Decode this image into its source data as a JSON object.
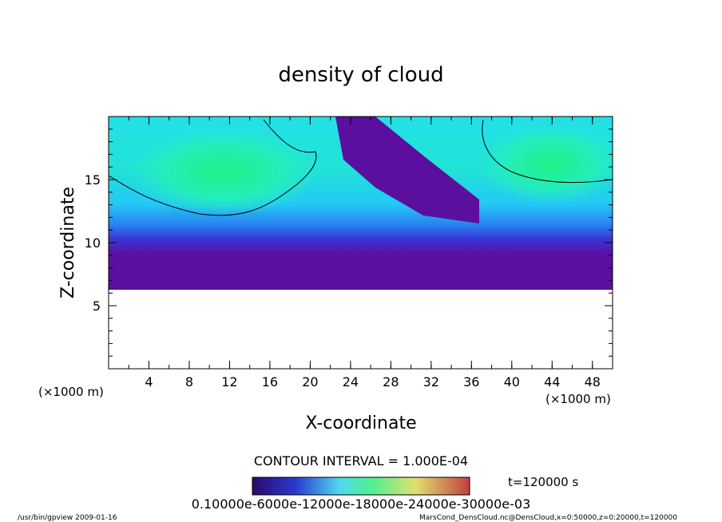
{
  "chart_data": {
    "type": "heatmap",
    "title": "density of cloud",
    "xlabel": "X-coordinate",
    "ylabel": "Z-coordinate",
    "x_unit_left": "(×1000 m)",
    "x_unit_right": "(×1000 m)",
    "xlim": [
      0,
      50
    ],
    "ylim": [
      0,
      20
    ],
    "x_ticks": [
      4,
      8,
      12,
      16,
      20,
      24,
      28,
      32,
      36,
      40,
      44,
      48
    ],
    "x_tick_labels": [
      "4",
      "8",
      "12",
      "16",
      "20",
      "24",
      "28",
      "32",
      "36",
      "40",
      "44",
      "48"
    ],
    "y_ticks": [
      5,
      10,
      15
    ],
    "y_tick_labels": [
      "5",
      "10",
      "15"
    ],
    "contour_interval_label": "CONTOUR INTERVAL = 1.000E-04",
    "time_label": "t=120000 s",
    "colorbar_labels": "0.10000e-6000e-12000e-18000e-24000e-30000e-03",
    "colorbar_colors": [
      "#2a0a6a",
      "#3a1aa0",
      "#2a3ad0",
      "#3a9af0",
      "#50e8e8",
      "#40f090",
      "#90f060",
      "#e0e070",
      "#e0a060",
      "#d06050",
      "#c04040"
    ],
    "field_colors": {
      "low": "#5b0f9e",
      "mid_low": "#2b2bd8",
      "mid": "#23d3f3",
      "high": "#2cf0c8",
      "peak": "#22e890"
    },
    "footer_left": "/usr/bin/gpview   2009-01-16",
    "footer_right": "MarsCond_DensCloud.nc@DensCloud,x=0:50000,z=0:20000,t=120000"
  }
}
